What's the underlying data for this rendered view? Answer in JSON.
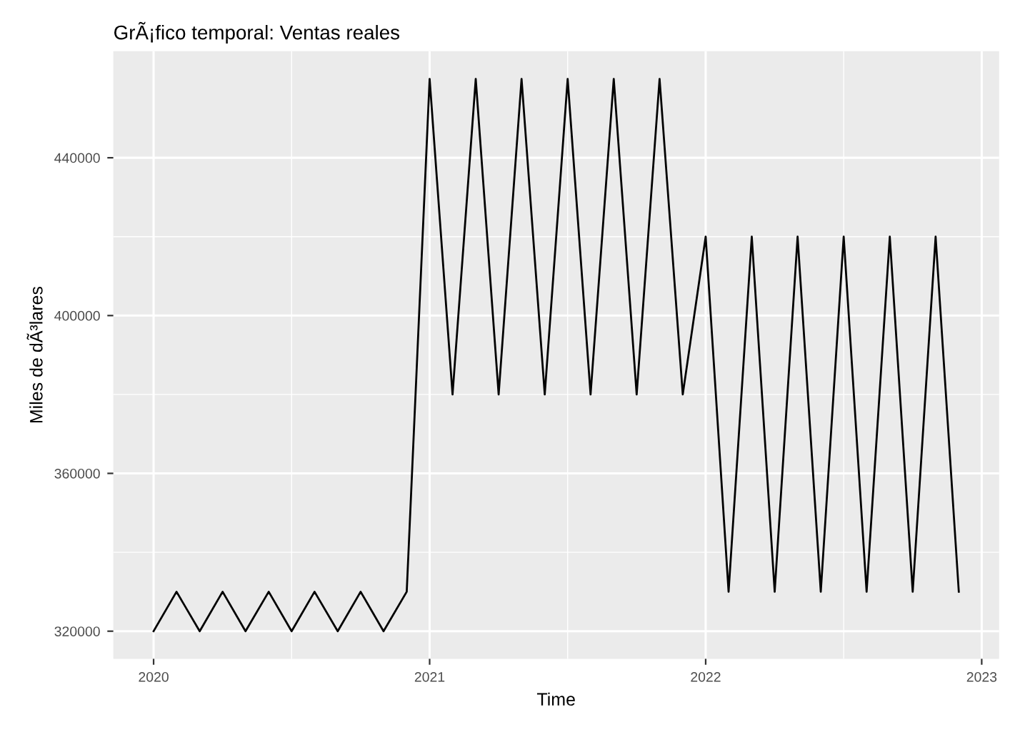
{
  "chart_data": {
    "type": "line",
    "title": "GrÃ¡fico temporal: Ventas reales",
    "xlabel": "Time",
    "ylabel": "Miles de dÃ³lares",
    "x": [
      2020,
      2020.083,
      2020.167,
      2020.25,
      2020.333,
      2020.417,
      2020.5,
      2020.583,
      2020.667,
      2020.75,
      2020.833,
      2020.917,
      2021,
      2021.083,
      2021.167,
      2021.25,
      2021.333,
      2021.417,
      2021.5,
      2021.583,
      2021.667,
      2021.75,
      2021.833,
      2021.917,
      2022,
      2022.083,
      2022.167,
      2022.25,
      2022.333,
      2022.417,
      2022.5,
      2022.583,
      2022.667,
      2022.75,
      2022.833,
      2022.917
    ],
    "series": [
      {
        "color": "#000000",
        "values": [
          320000,
          330000,
          320000,
          330000,
          320000,
          330000,
          320000,
          330000,
          320000,
          330000,
          320000,
          330000,
          460000,
          380000,
          460000,
          380000,
          460000,
          380000,
          460000,
          380000,
          460000,
          380000,
          460000,
          380000,
          420000,
          330000,
          420000,
          330000,
          420000,
          330000,
          420000,
          330000,
          420000,
          330000,
          420000,
          330000
        ]
      }
    ],
    "xlim": [
      2019.854,
      2023.063
    ],
    "ylim": [
      313000,
      467000
    ],
    "xticks": [
      2020,
      2021,
      2022,
      2023
    ],
    "yticks": [
      320000,
      360000,
      400000,
      440000
    ],
    "grid": true,
    "marker": "none",
    "line_style": "solid"
  }
}
